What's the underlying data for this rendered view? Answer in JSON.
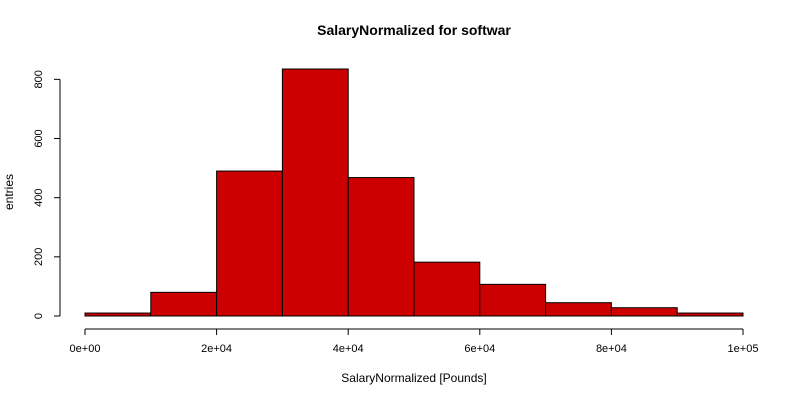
{
  "chart_data": {
    "type": "bar",
    "title": "SalaryNormalized for softwar",
    "xlabel": "SalaryNormalized [Pounds]",
    "ylabel": "entries",
    "bin_edges": [
      0,
      10000,
      20000,
      30000,
      40000,
      50000,
      60000,
      70000,
      80000,
      90000,
      100000
    ],
    "values": [
      10,
      80,
      490,
      835,
      468,
      182,
      107,
      45,
      28,
      10
    ],
    "xlim": [
      0,
      100000
    ],
    "ylim": [
      0,
      835
    ],
    "x_ticks": [
      0,
      20000,
      40000,
      60000,
      80000,
      100000
    ],
    "x_tick_labels": [
      "0e+00",
      "2e+04",
      "4e+04",
      "6e+04",
      "8e+04",
      "1e+05"
    ],
    "y_ticks": [
      0,
      200,
      400,
      600,
      800
    ],
    "y_tick_labels": [
      "0",
      "200",
      "400",
      "600",
      "800"
    ],
    "bar_color": "#cc0000",
    "grid": false,
    "legend": "none"
  }
}
